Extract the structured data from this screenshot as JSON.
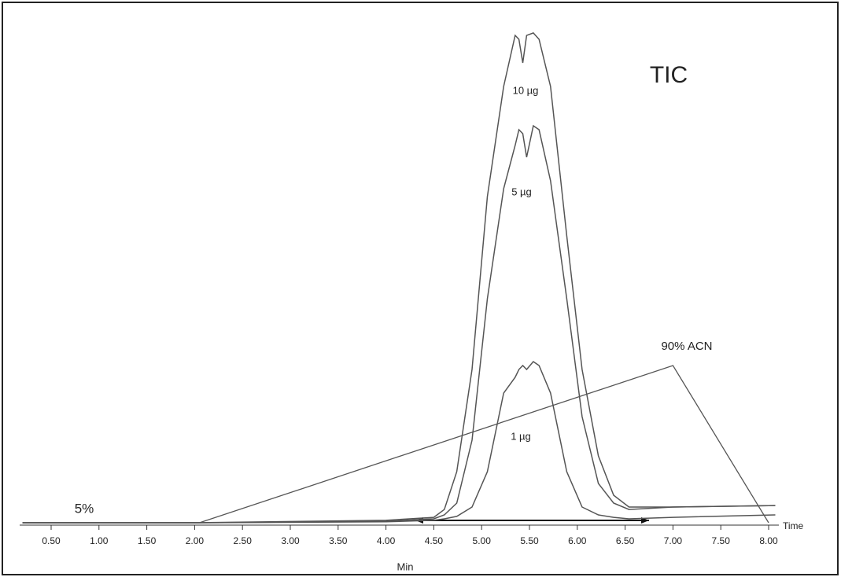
{
  "chart_data": {
    "type": "line",
    "title": "TIC",
    "xlabel": "Min",
    "x_end_label": "Time",
    "x": [
      0.2,
      2.0,
      4.0,
      4.5,
      4.61,
      4.74,
      4.9,
      5.06,
      5.23,
      5.35,
      5.39,
      5.43,
      5.47,
      5.54,
      5.6,
      5.72,
      5.89,
      6.05,
      6.22,
      6.38,
      6.54,
      7.0,
      8.07
    ],
    "series": [
      {
        "name": "10 µg",
        "color": "#555555",
        "values": [
          0,
          0,
          0.5,
          1.1,
          2.7,
          10.4,
          31.2,
          66.4,
          88.8,
          99.2,
          98.4,
          93.6,
          99.2,
          99.7,
          98.4,
          88.8,
          58.4,
          31.2,
          13.6,
          5.6,
          3.2,
          3.2,
          3.5
        ]
      },
      {
        "name": "5 µg",
        "color": "#555555",
        "values": [
          0,
          0,
          0.3,
          0.8,
          1.6,
          4,
          16.8,
          45.6,
          68,
          76.8,
          80,
          79.2,
          74.4,
          80.8,
          80,
          69.6,
          45.6,
          21.6,
          8,
          4,
          2.7,
          3.2,
          3.5
        ]
      },
      {
        "name": "1 µg",
        "color": "#555555",
        "values": [
          0,
          0,
          0.2,
          0.5,
          0.8,
          1.3,
          3.2,
          10.4,
          26.4,
          29.6,
          31.2,
          32,
          31.2,
          32.8,
          32,
          26.4,
          10.4,
          3.2,
          1.6,
          1.1,
          0.8,
          1.1,
          1.6
        ]
      }
    ],
    "gradient": {
      "name": "90% ACN",
      "start_label": "5%",
      "axis": "y2",
      "color": "#555555",
      "x": [
        0.2,
        2.05,
        7.0,
        8.0
      ],
      "values": [
        5,
        5,
        90,
        5
      ]
    },
    "xlim": [
      0.2,
      8.1
    ],
    "ylim": [
      0,
      100
    ],
    "y2lim": [
      0,
      100
    ],
    "xticks": [
      {
        "value": 0.5,
        "label": "0.50"
      },
      {
        "value": 1,
        "label": "1.00"
      },
      {
        "value": 1.5,
        "label": "1.50"
      },
      {
        "value": 2,
        "label": "2.00"
      },
      {
        "value": 2.5,
        "label": "2.50"
      },
      {
        "value": 3,
        "label": "3.00"
      },
      {
        "value": 3.5,
        "label": "3.50"
      },
      {
        "value": 4,
        "label": "4.00"
      },
      {
        "value": 4.5,
        "label": "4.50"
      },
      {
        "value": 5,
        "label": "5.00"
      },
      {
        "value": 5.5,
        "label": "5.50"
      },
      {
        "value": 6,
        "label": "6.00"
      },
      {
        "value": 6.5,
        "label": "6.50"
      },
      {
        "value": 7,
        "label": "7.00"
      },
      {
        "value": 7.5,
        "label": "7.50"
      },
      {
        "value": 8,
        "label": "8.00"
      }
    ]
  }
}
